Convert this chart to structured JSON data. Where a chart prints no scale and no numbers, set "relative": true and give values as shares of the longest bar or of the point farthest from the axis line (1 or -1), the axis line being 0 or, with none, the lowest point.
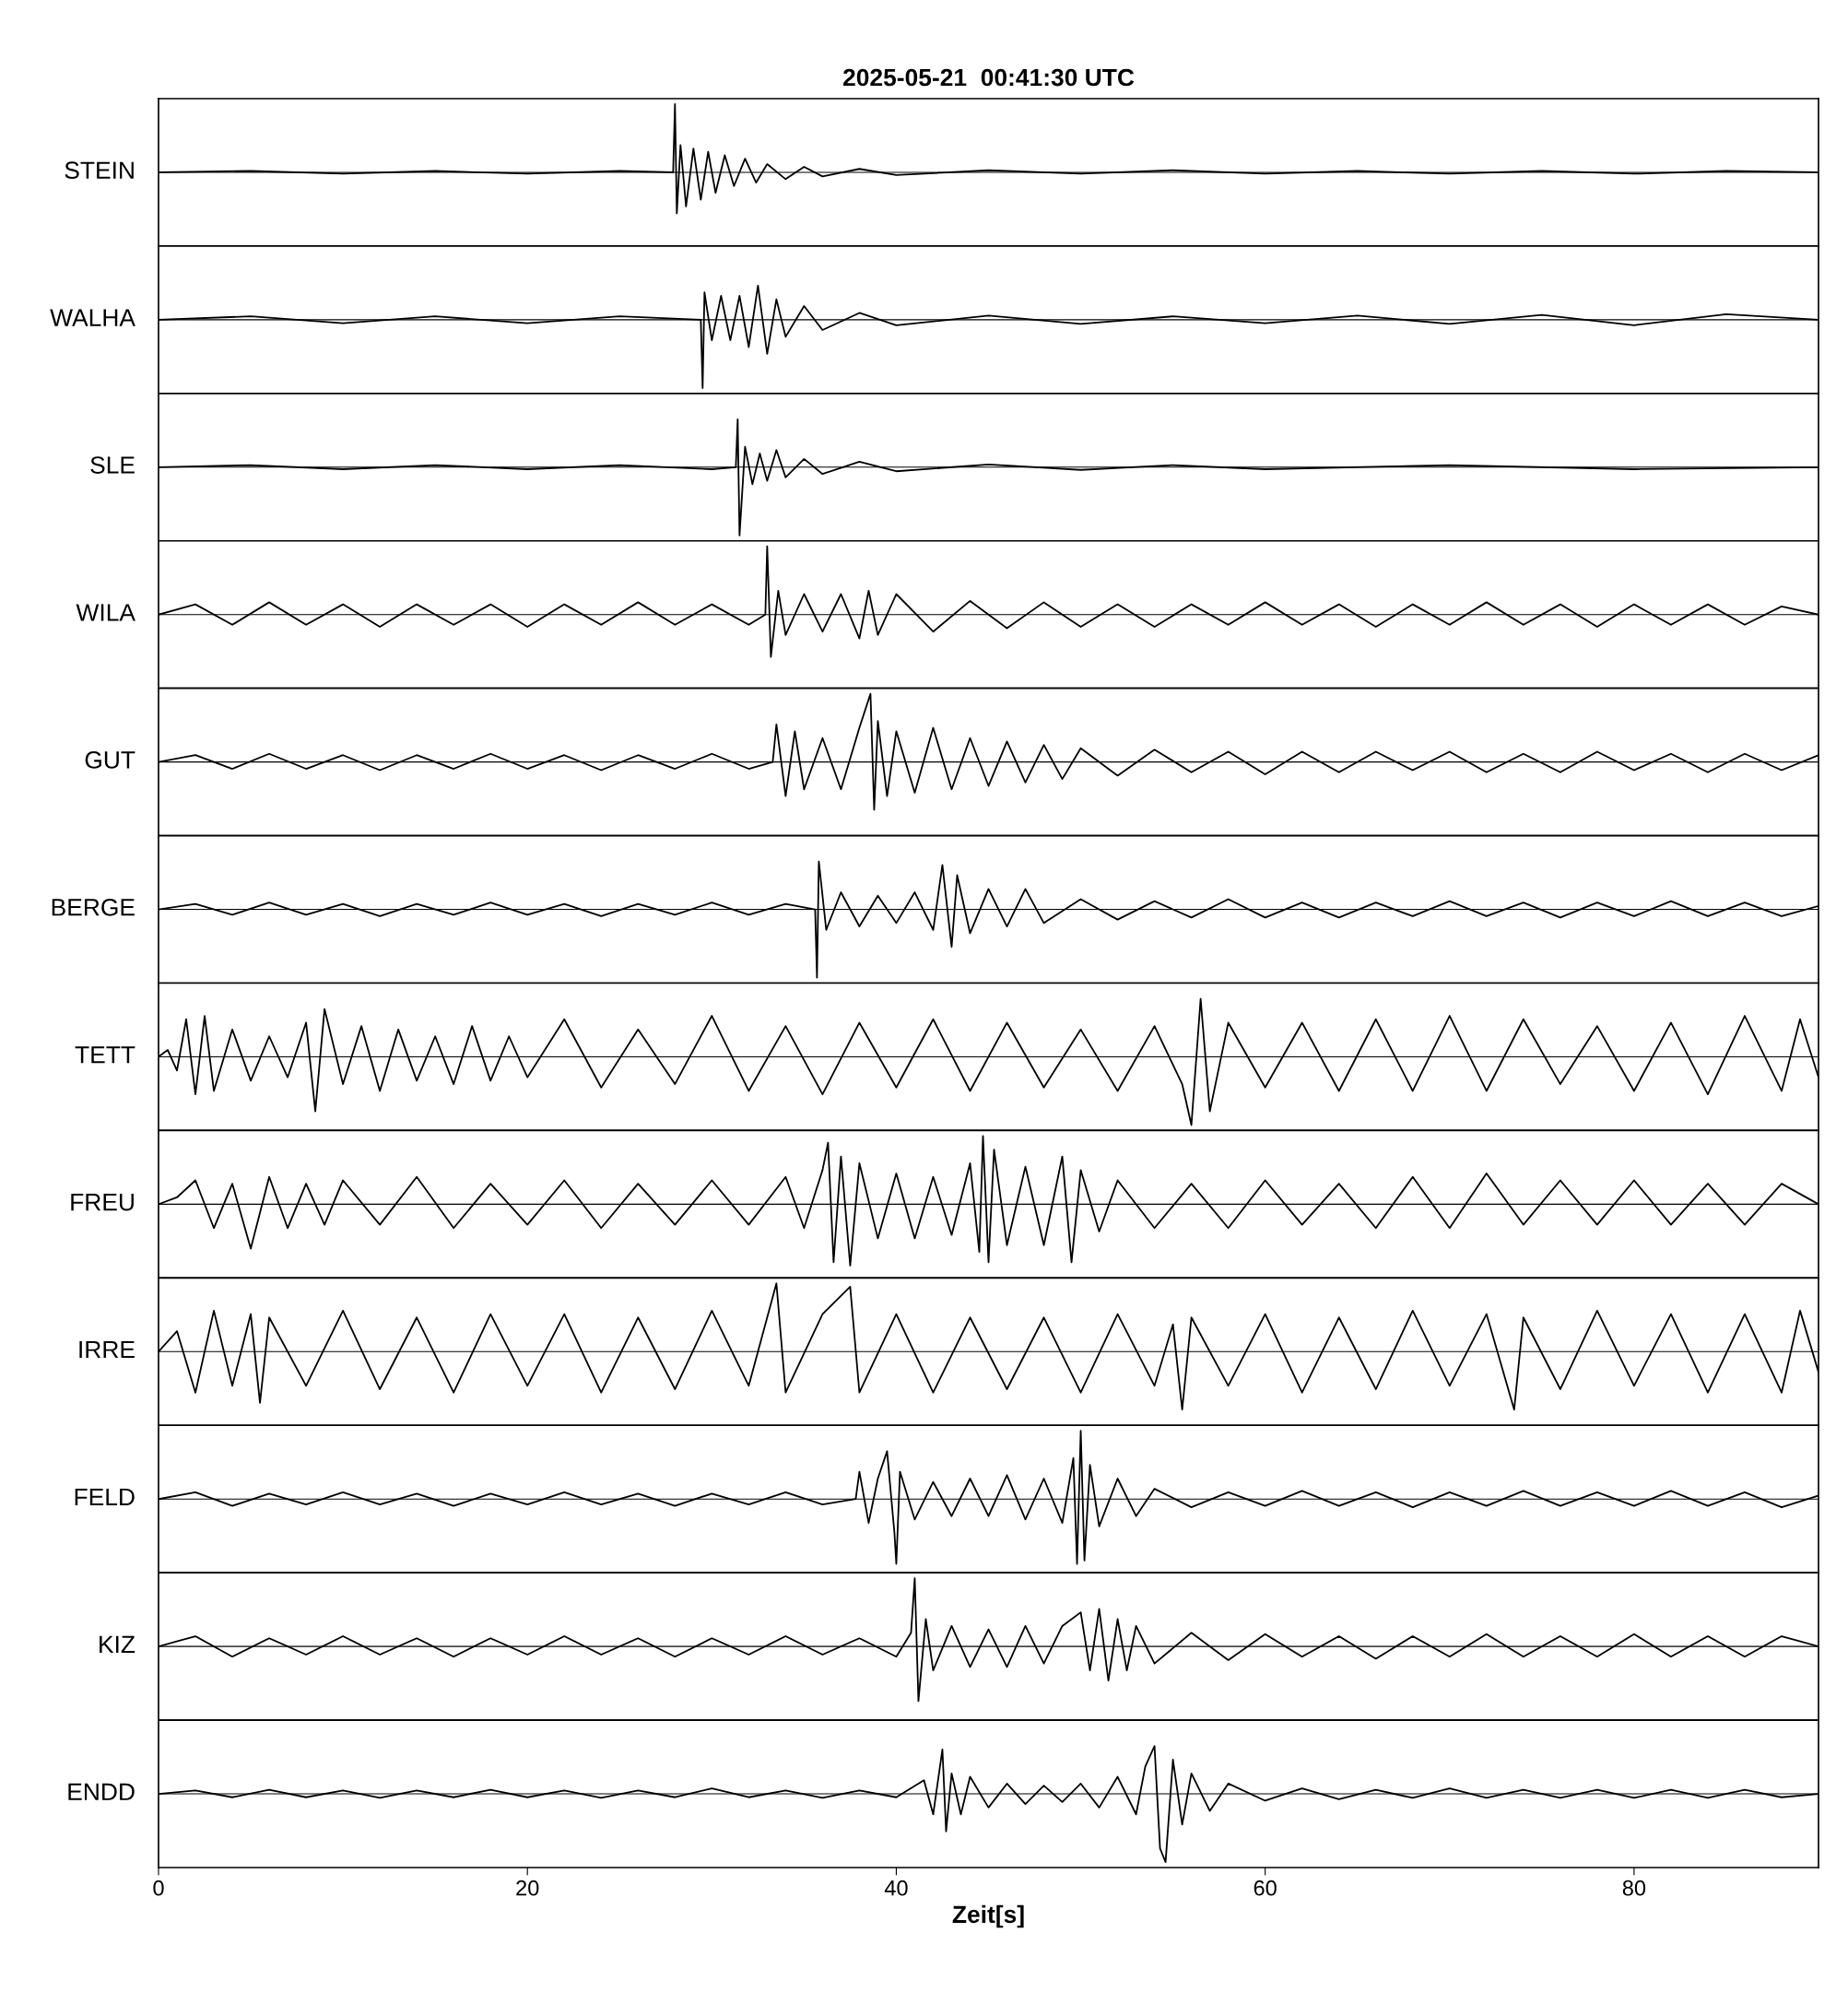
{
  "chart_data": [
    {
      "type": "line",
      "relative": true,
      "title": "2025-05-21  00:41:30 UTC",
      "ylabel": "STEIN",
      "xlim": [
        0,
        90
      ],
      "tick_labels": false,
      "x": [
        0,
        5,
        10,
        15,
        20,
        25,
        27.9,
        28,
        28.1,
        28.3,
        28.6,
        29,
        29.4,
        29.8,
        30.2,
        30.7,
        31.2,
        31.8,
        32.4,
        33,
        34,
        35,
        36,
        38,
        40,
        45,
        50,
        55,
        60,
        65,
        70,
        75,
        80,
        85,
        90
      ],
      "series": [
        {
          "color": "#000000",
          "values": [
            0,
            0.02,
            -0.02,
            0.02,
            -0.02,
            0.02,
            0,
            1,
            -0.6,
            0.4,
            -0.5,
            0.35,
            -0.4,
            0.3,
            -0.3,
            0.25,
            -0.2,
            0.2,
            -0.15,
            0.12,
            -0.1,
            0.08,
            -0.06,
            0.05,
            -0.04,
            0.03,
            -0.02,
            0.03,
            -0.02,
            0.02,
            -0.02,
            0.02,
            -0.02,
            0.02,
            0
          ]
        }
      ]
    },
    {
      "type": "line",
      "relative": true,
      "ylabel": "WALHA",
      "xlim": [
        0,
        90
      ],
      "tick_labels": false,
      "x": [
        0,
        5,
        10,
        15,
        20,
        25,
        29.4,
        29.5,
        29.6,
        30,
        30.5,
        31,
        31.5,
        32,
        32.5,
        33,
        33.5,
        34,
        35,
        36,
        38,
        40,
        45,
        50,
        55,
        60,
        65,
        70,
        75,
        80,
        85,
        90
      ],
      "series": [
        {
          "color": "#000000",
          "values": [
            0,
            0.05,
            -0.05,
            0.05,
            -0.05,
            0.05,
            0,
            -1,
            0.4,
            -0.3,
            0.35,
            -0.3,
            0.35,
            -0.4,
            0.5,
            -0.5,
            0.3,
            -0.25,
            0.2,
            -0.15,
            0.1,
            -0.08,
            0.06,
            -0.06,
            0.05,
            -0.05,
            0.06,
            -0.06,
            0.07,
            -0.08,
            0.08,
            0
          ]
        }
      ]
    },
    {
      "type": "line",
      "relative": true,
      "ylabel": "SLE",
      "xlim": [
        0,
        90
      ],
      "tick_labels": false,
      "x": [
        0,
        5,
        10,
        15,
        20,
        25,
        30,
        31.3,
        31.4,
        31.5,
        31.8,
        32.2,
        32.6,
        33,
        33.5,
        34,
        35,
        36,
        38,
        40,
        45,
        50,
        55,
        60,
        70,
        80,
        90
      ],
      "series": [
        {
          "color": "#000000",
          "values": [
            0,
            0.03,
            -0.03,
            0.03,
            -0.03,
            0.03,
            -0.03,
            0,
            0.7,
            -1,
            0.3,
            -0.25,
            0.2,
            -0.2,
            0.25,
            -0.15,
            0.12,
            -0.1,
            0.08,
            -0.06,
            0.04,
            -0.04,
            0.03,
            -0.03,
            0.03,
            -0.03,
            0
          ]
        }
      ]
    },
    {
      "type": "line",
      "relative": true,
      "ylabel": "WILA",
      "xlim": [
        0,
        90
      ],
      "tick_labels": false,
      "x": [
        0,
        2,
        4,
        6,
        8,
        10,
        12,
        14,
        16,
        18,
        20,
        22,
        24,
        26,
        28,
        30,
        32,
        32.9,
        33,
        33.2,
        33.6,
        34,
        35,
        36,
        37,
        38,
        38.5,
        39,
        40,
        42,
        44,
        46,
        48,
        50,
        52,
        54,
        56,
        58,
        60,
        62,
        64,
        66,
        68,
        70,
        72,
        74,
        76,
        78,
        80,
        82,
        84,
        86,
        88,
        90
      ],
      "series": [
        {
          "color": "#000000",
          "values": [
            0,
            0.15,
            -0.15,
            0.18,
            -0.15,
            0.15,
            -0.18,
            0.15,
            -0.15,
            0.15,
            -0.18,
            0.15,
            -0.15,
            0.18,
            -0.15,
            0.15,
            -0.15,
            0,
            1,
            -0.62,
            0.35,
            -0.3,
            0.3,
            -0.25,
            0.3,
            -0.35,
            0.35,
            -0.3,
            0.3,
            -0.25,
            0.2,
            -0.2,
            0.18,
            -0.18,
            0.15,
            -0.18,
            0.15,
            -0.15,
            0.18,
            -0.15,
            0.15,
            -0.18,
            0.15,
            -0.15,
            0.18,
            -0.15,
            0.15,
            -0.18,
            0.15,
            -0.15,
            0.15,
            -0.15,
            0.12,
            0
          ]
        }
      ]
    },
    {
      "type": "line",
      "relative": true,
      "ylabel": "GUT",
      "xlim": [
        0,
        90
      ],
      "tick_labels": false,
      "x": [
        0,
        2,
        4,
        6,
        8,
        10,
        12,
        14,
        16,
        18,
        20,
        22,
        24,
        26,
        28,
        30,
        32,
        33.3,
        33.5,
        34,
        34.5,
        35,
        36,
        37,
        38,
        38.6,
        38.8,
        39,
        39.5,
        40,
        41,
        42,
        43,
        44,
        45,
        46,
        47,
        48,
        49,
        50,
        52,
        54,
        56,
        58,
        60,
        62,
        64,
        66,
        68,
        70,
        72,
        74,
        76,
        78,
        80,
        82,
        84,
        86,
        88,
        90
      ],
      "series": [
        {
          "color": "#000000",
          "values": [
            0,
            0.1,
            -0.1,
            0.12,
            -0.1,
            0.1,
            -0.12,
            0.1,
            -0.1,
            0.12,
            -0.1,
            0.1,
            -0.12,
            0.1,
            -0.1,
            0.12,
            -0.1,
            0,
            0.55,
            -0.5,
            0.45,
            -0.4,
            0.35,
            -0.4,
            0.5,
            1,
            -0.7,
            0.6,
            -0.5,
            0.45,
            -0.45,
            0.5,
            -0.4,
            0.35,
            -0.35,
            0.3,
            -0.3,
            0.25,
            -0.25,
            0.2,
            -0.2,
            0.18,
            -0.15,
            0.15,
            -0.18,
            0.15,
            -0.15,
            0.15,
            -0.12,
            0.15,
            -0.15,
            0.12,
            -0.15,
            0.15,
            -0.12,
            0.12,
            -0.15,
            0.12,
            -0.12,
            0.1
          ]
        }
      ]
    },
    {
      "type": "line",
      "relative": true,
      "ylabel": "BERGE",
      "xlim": [
        0,
        90
      ],
      "tick_labels": false,
      "x": [
        0,
        2,
        4,
        6,
        8,
        10,
        12,
        14,
        16,
        18,
        20,
        22,
        24,
        26,
        28,
        30,
        32,
        34,
        35.6,
        35.7,
        35.8,
        36.2,
        37,
        38,
        39,
        40,
        41,
        42,
        42.5,
        43,
        43.3,
        44,
        45,
        46,
        47,
        48,
        50,
        52,
        54,
        56,
        58,
        60,
        62,
        64,
        66,
        68,
        70,
        72,
        74,
        76,
        78,
        80,
        82,
        84,
        86,
        88,
        90
      ],
      "series": [
        {
          "color": "#000000",
          "values": [
            0,
            0.08,
            -0.08,
            0.1,
            -0.08,
            0.08,
            -0.1,
            0.08,
            -0.08,
            0.1,
            -0.08,
            0.08,
            -0.1,
            0.08,
            -0.08,
            0.1,
            -0.08,
            0.08,
            0,
            -1,
            0.7,
            -0.3,
            0.25,
            -0.25,
            0.2,
            -0.2,
            0.25,
            -0.3,
            0.65,
            -0.55,
            0.5,
            -0.35,
            0.3,
            -0.25,
            0.3,
            -0.2,
            0.15,
            -0.15,
            0.12,
            -0.12,
            0.15,
            -0.12,
            0.1,
            -0.12,
            0.1,
            -0.1,
            0.12,
            -0.1,
            0.1,
            -0.12,
            0.1,
            -0.1,
            0.12,
            -0.1,
            0.1,
            -0.1,
            0.05
          ]
        }
      ]
    },
    {
      "type": "line",
      "relative": true,
      "ylabel": "TETT",
      "xlim": [
        0,
        90
      ],
      "tick_labels": false,
      "x": [
        0,
        0.5,
        1,
        1.5,
        2,
        2.5,
        3,
        4,
        5,
        6,
        7,
        8,
        8.5,
        9,
        10,
        11,
        12,
        13,
        14,
        15,
        16,
        17,
        18,
        19,
        20,
        22,
        24,
        26,
        28,
        30,
        32,
        34,
        36,
        38,
        40,
        42,
        44,
        46,
        48,
        50,
        52,
        54,
        55.5,
        56,
        56.5,
        57,
        58,
        60,
        62,
        64,
        66,
        68,
        70,
        72,
        74,
        76,
        78,
        80,
        82,
        84,
        86,
        88,
        89,
        90
      ],
      "series": [
        {
          "color": "#000000",
          "values": [
            0,
            0.1,
            -0.2,
            0.55,
            -0.55,
            0.6,
            -0.5,
            0.4,
            -0.35,
            0.3,
            -0.3,
            0.5,
            -0.8,
            0.7,
            -0.4,
            0.45,
            -0.5,
            0.4,
            -0.35,
            0.3,
            -0.4,
            0.45,
            -0.35,
            0.3,
            -0.3,
            0.55,
            -0.45,
            0.4,
            -0.4,
            0.6,
            -0.5,
            0.45,
            -0.55,
            0.5,
            -0.45,
            0.55,
            -0.5,
            0.5,
            -0.45,
            0.4,
            -0.5,
            0.45,
            -0.4,
            -1,
            0.85,
            -0.8,
            0.5,
            -0.45,
            0.5,
            -0.5,
            0.55,
            -0.5,
            0.6,
            -0.5,
            0.55,
            -0.4,
            0.45,
            -0.5,
            0.5,
            -0.55,
            0.6,
            -0.5,
            0.55,
            -0.3
          ]
        }
      ]
    },
    {
      "type": "line",
      "relative": true,
      "ylabel": "FREU",
      "xlim": [
        0,
        90
      ],
      "tick_labels": false,
      "x": [
        0,
        1,
        2,
        3,
        4,
        5,
        6,
        7,
        8,
        9,
        10,
        12,
        14,
        16,
        18,
        20,
        22,
        24,
        26,
        28,
        30,
        32,
        34,
        35,
        36,
        36.3,
        36.6,
        37,
        37.5,
        38,
        39,
        40,
        41,
        42,
        43,
        44,
        44.5,
        44.7,
        45,
        45.3,
        46,
        47,
        48,
        49,
        49.5,
        50,
        51,
        52,
        54,
        56,
        58,
        60,
        62,
        64,
        66,
        68,
        70,
        72,
        74,
        76,
        78,
        80,
        82,
        84,
        86,
        88,
        90
      ],
      "series": [
        {
          "color": "#000000",
          "values": [
            0,
            0.1,
            0.35,
            -0.35,
            0.3,
            -0.65,
            0.4,
            -0.35,
            0.3,
            -0.3,
            0.35,
            -0.3,
            0.4,
            -0.35,
            0.3,
            -0.3,
            0.35,
            -0.35,
            0.3,
            -0.3,
            0.35,
            -0.3,
            0.4,
            -0.35,
            0.5,
            0.9,
            -0.85,
            0.7,
            -0.9,
            0.6,
            -0.5,
            0.45,
            -0.5,
            0.4,
            -0.45,
            0.6,
            -0.7,
            1,
            -0.85,
            0.8,
            -0.6,
            0.55,
            -0.6,
            0.7,
            -0.85,
            0.5,
            -0.4,
            0.35,
            -0.35,
            0.3,
            -0.35,
            0.35,
            -0.3,
            0.3,
            -0.35,
            0.4,
            -0.35,
            0.45,
            -0.3,
            0.35,
            -0.3,
            0.35,
            -0.3,
            0.3,
            -0.3,
            0.3,
            0
          ]
        }
      ]
    },
    {
      "type": "line",
      "relative": true,
      "ylabel": "IRRE",
      "xlim": [
        0,
        90
      ],
      "tick_labels": false,
      "x": [
        0,
        1,
        2,
        3,
        4,
        5,
        5.5,
        6,
        8,
        10,
        12,
        14,
        16,
        18,
        20,
        22,
        24,
        26,
        28,
        30,
        32,
        33.5,
        34,
        36,
        37.5,
        38,
        40,
        42,
        44,
        46,
        48,
        50,
        52,
        54,
        55,
        55.5,
        56,
        58,
        60,
        62,
        64,
        66,
        68,
        70,
        72,
        73.5,
        74,
        76,
        78,
        80,
        82,
        84,
        86,
        88,
        89,
        90
      ],
      "series": [
        {
          "color": "#000000",
          "values": [
            0,
            0.3,
            -0.6,
            0.6,
            -0.5,
            0.55,
            -0.75,
            0.5,
            -0.5,
            0.6,
            -0.55,
            0.5,
            -0.6,
            0.55,
            -0.5,
            0.55,
            -0.6,
            0.5,
            -0.55,
            0.6,
            -0.5,
            1,
            -0.6,
            0.55,
            0.95,
            -0.6,
            0.55,
            -0.6,
            0.5,
            -0.55,
            0.5,
            -0.6,
            0.55,
            -0.5,
            0.4,
            -0.85,
            0.5,
            -0.5,
            0.55,
            -0.6,
            0.5,
            -0.55,
            0.6,
            -0.5,
            0.55,
            -0.85,
            0.5,
            -0.55,
            0.6,
            -0.5,
            0.55,
            -0.6,
            0.55,
            -0.6,
            0.6,
            -0.3
          ]
        }
      ]
    },
    {
      "type": "line",
      "relative": true,
      "ylabel": "FELD",
      "xlim": [
        0,
        90
      ],
      "tick_labels": false,
      "x": [
        0,
        2,
        4,
        6,
        8,
        10,
        12,
        14,
        16,
        18,
        20,
        22,
        24,
        26,
        28,
        30,
        32,
        34,
        36,
        37.8,
        38,
        38.5,
        39,
        39.5,
        39.9,
        40,
        40.2,
        41,
        42,
        43,
        44,
        45,
        46,
        47,
        48,
        49,
        49.6,
        49.8,
        50,
        50.2,
        50.5,
        51,
        52,
        53,
        54,
        56,
        58,
        60,
        62,
        64,
        66,
        68,
        70,
        72,
        74,
        76,
        78,
        80,
        82,
        84,
        86,
        88,
        90
      ],
      "series": [
        {
          "color": "#000000",
          "values": [
            0,
            0.1,
            -0.1,
            0.08,
            -0.08,
            0.1,
            -0.08,
            0.08,
            -0.1,
            0.08,
            -0.08,
            0.1,
            -0.08,
            0.08,
            -0.1,
            0.08,
            -0.08,
            0.1,
            -0.08,
            0,
            0.4,
            -0.35,
            0.3,
            0.7,
            -0.5,
            -0.95,
            0.4,
            -0.3,
            0.25,
            -0.25,
            0.3,
            -0.25,
            0.35,
            -0.3,
            0.3,
            -0.35,
            0.6,
            -0.95,
            1,
            -0.9,
            0.5,
            -0.4,
            0.3,
            -0.25,
            0.15,
            -0.12,
            0.1,
            -0.1,
            0.12,
            -0.1,
            0.1,
            -0.12,
            0.1,
            -0.1,
            0.12,
            -0.1,
            0.1,
            -0.1,
            0.12,
            -0.1,
            0.1,
            -0.12,
            0.05
          ]
        }
      ]
    },
    {
      "type": "line",
      "relative": true,
      "ylabel": "KIZ",
      "xlim": [
        0,
        90
      ],
      "tick_labels": false,
      "x": [
        0,
        2,
        4,
        6,
        8,
        10,
        12,
        14,
        16,
        18,
        20,
        22,
        24,
        26,
        28,
        30,
        32,
        34,
        36,
        38,
        40,
        40.8,
        41,
        41.2,
        41.6,
        42,
        43,
        44,
        45,
        46,
        47,
        48,
        49,
        50,
        50.5,
        51,
        51.5,
        52,
        52.5,
        53,
        54,
        56,
        58,
        60,
        62,
        64,
        66,
        68,
        70,
        72,
        74,
        76,
        78,
        80,
        82,
        84,
        86,
        88,
        90
      ],
      "series": [
        {
          "color": "#000000",
          "values": [
            0,
            0.15,
            -0.15,
            0.12,
            -0.12,
            0.15,
            -0.12,
            0.12,
            -0.15,
            0.12,
            -0.12,
            0.15,
            -0.12,
            0.12,
            -0.15,
            0.12,
            -0.12,
            0.15,
            -0.12,
            0.12,
            -0.15,
            0.2,
            1,
            -0.8,
            0.4,
            -0.35,
            0.3,
            -0.3,
            0.25,
            -0.3,
            0.3,
            -0.25,
            0.3,
            0.5,
            -0.35,
            0.55,
            -0.5,
            0.4,
            -0.35,
            0.3,
            -0.25,
            0.2,
            -0.2,
            0.18,
            -0.15,
            0.15,
            -0.18,
            0.15,
            -0.15,
            0.18,
            -0.15,
            0.15,
            -0.15,
            0.18,
            -0.15,
            0.15,
            -0.15,
            0.15,
            0
          ]
        }
      ]
    },
    {
      "type": "line",
      "relative": true,
      "ylabel": "ENDD",
      "xlabel": "Zeit[s]",
      "xlim": [
        0,
        90
      ],
      "xticks": [
        0,
        20,
        40,
        60,
        80
      ],
      "tick_labels": "x",
      "x": [
        0,
        2,
        4,
        6,
        8,
        10,
        12,
        14,
        16,
        18,
        20,
        22,
        24,
        26,
        28,
        30,
        32,
        34,
        36,
        38,
        40,
        41.5,
        42,
        42.5,
        42.7,
        43,
        43.5,
        44,
        45,
        46,
        47,
        48,
        49,
        50,
        51,
        52,
        53,
        53.5,
        54,
        54.3,
        54.6,
        55,
        55.5,
        56,
        57,
        58,
        60,
        62,
        64,
        66,
        68,
        70,
        72,
        74,
        76,
        78,
        80,
        82,
        84,
        86,
        88,
        90
      ],
      "series": [
        {
          "color": "#000000",
          "values": [
            0,
            0.05,
            -0.05,
            0.06,
            -0.05,
            0.05,
            -0.06,
            0.05,
            -0.05,
            0.06,
            -0.05,
            0.05,
            -0.06,
            0.05,
            -0.05,
            0.08,
            -0.05,
            0.05,
            -0.06,
            0.05,
            -0.05,
            0.2,
            -0.3,
            0.65,
            -0.55,
            0.3,
            -0.3,
            0.25,
            -0.2,
            0.15,
            -0.15,
            0.12,
            -0.12,
            0.15,
            -0.2,
            0.25,
            -0.3,
            0.4,
            0.7,
            -0.8,
            -1,
            0.5,
            -0.45,
            0.3,
            -0.25,
            0.15,
            -0.1,
            0.08,
            -0.08,
            0.06,
            -0.06,
            0.08,
            -0.06,
            0.06,
            -0.06,
            0.06,
            -0.06,
            0.06,
            -0.06,
            0.06,
            -0.05,
            0
          ]
        }
      ]
    }
  ]
}
